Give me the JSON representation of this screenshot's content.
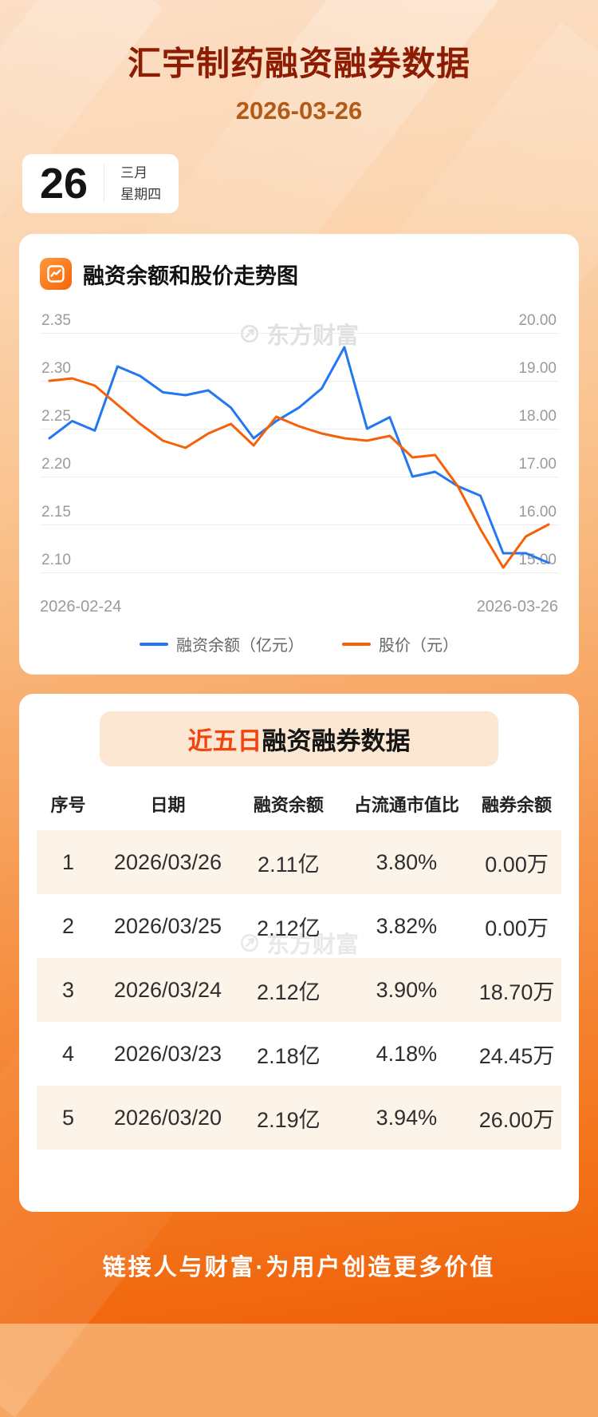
{
  "header": {
    "title": "汇宇制药融资融券数据",
    "date": "2026-03-26"
  },
  "date_card": {
    "day": "26",
    "month": "三月",
    "weekday": "星期四"
  },
  "chart": {
    "title": "融资余额和股价走势图",
    "watermark": "东方财富",
    "x_start_label": "2026-02-24",
    "x_end_label": "2026-03-26"
  },
  "chart_data": {
    "type": "line",
    "title": "融资余额和股价走势图",
    "x_range": [
      "2026-02-24",
      "2026-03-26"
    ],
    "grid": true,
    "legend_position": "bottom",
    "left_axis": {
      "label": "融资余额（亿元）",
      "min": 2.1,
      "max": 2.35,
      "ticks": [
        "2.35",
        "2.30",
        "2.25",
        "2.20",
        "2.15",
        "2.10"
      ]
    },
    "right_axis": {
      "label": "股价（元）",
      "min": 15.0,
      "max": 20.0,
      "ticks": [
        "20.00",
        "19.00",
        "18.00",
        "17.00",
        "16.00",
        "15.00"
      ]
    },
    "series": [
      {
        "name": "融资余额（亿元）",
        "axis": "left",
        "color": "#2477f2",
        "values": [
          2.24,
          2.258,
          2.248,
          2.315,
          2.305,
          2.288,
          2.285,
          2.29,
          2.272,
          2.24,
          2.258,
          2.272,
          2.292,
          2.335,
          2.25,
          2.262,
          2.2,
          2.205,
          2.19,
          2.18,
          2.12,
          2.12,
          2.11
        ]
      },
      {
        "name": "股价（元）",
        "axis": "right",
        "color": "#f56108",
        "values": [
          19.0,
          19.05,
          18.9,
          18.5,
          18.1,
          17.75,
          17.6,
          17.9,
          18.1,
          17.65,
          18.25,
          18.05,
          17.9,
          17.8,
          17.75,
          17.85,
          17.4,
          17.45,
          16.8,
          15.9,
          15.1,
          15.75,
          16.0
        ]
      }
    ]
  },
  "table": {
    "title_highlight": "近五日",
    "title_rest": "融资融券数据",
    "watermark": "东方财富",
    "columns": [
      "序号",
      "日期",
      "融资余额",
      "占流通市值比",
      "融券余额"
    ],
    "rows": [
      [
        "1",
        "2026/03/26",
        "2.11亿",
        "3.80%",
        "0.00万"
      ],
      [
        "2",
        "2026/03/25",
        "2.12亿",
        "3.82%",
        "0.00万"
      ],
      [
        "3",
        "2026/03/24",
        "2.12亿",
        "3.90%",
        "18.70万"
      ],
      [
        "4",
        "2026/03/23",
        "2.18亿",
        "4.18%",
        "24.45万"
      ],
      [
        "5",
        "2026/03/20",
        "2.19亿",
        "3.94%",
        "26.00万"
      ]
    ]
  },
  "footer": {
    "slogan": "链接人与财富·为用户创造更多价值"
  },
  "colors": {
    "title": "#8c1d03",
    "accent_red": "#f1440e",
    "line_blue": "#2477f2",
    "line_orange": "#f56108",
    "background_orange": "#f3731a"
  }
}
